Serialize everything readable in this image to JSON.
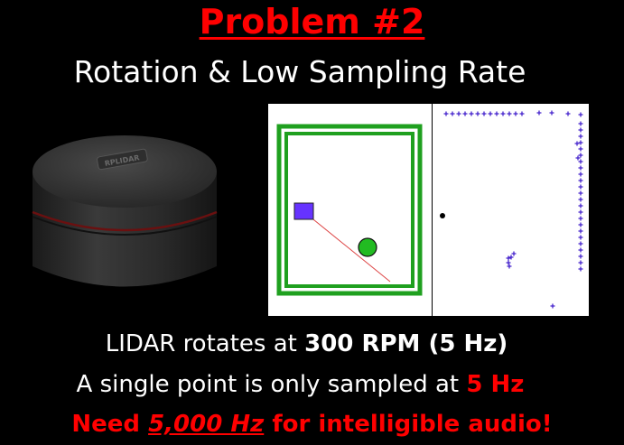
{
  "slide": {
    "title": "Problem #2",
    "subtitle": "Rotation & Low Sampling Rate"
  },
  "device": {
    "logo_text": "RPLIDAR"
  },
  "lines": {
    "line1_pre": "LIDAR rotates at ",
    "line1_bold": "300 RPM (5 Hz)",
    "line2_pre": "A single point is only sampled at ",
    "line2_red": "5 Hz",
    "line3_pre": "Need ",
    "line3_em": "5,000 Hz",
    "line3_post": " for intelligible audio!"
  },
  "colors": {
    "title": "#ff0000",
    "text": "#ffffff",
    "highlight": "#ff0000",
    "frame": "#1fa01f",
    "square": "#6633ff",
    "circle": "#22bb22",
    "scan_points": "#4422cc"
  }
}
